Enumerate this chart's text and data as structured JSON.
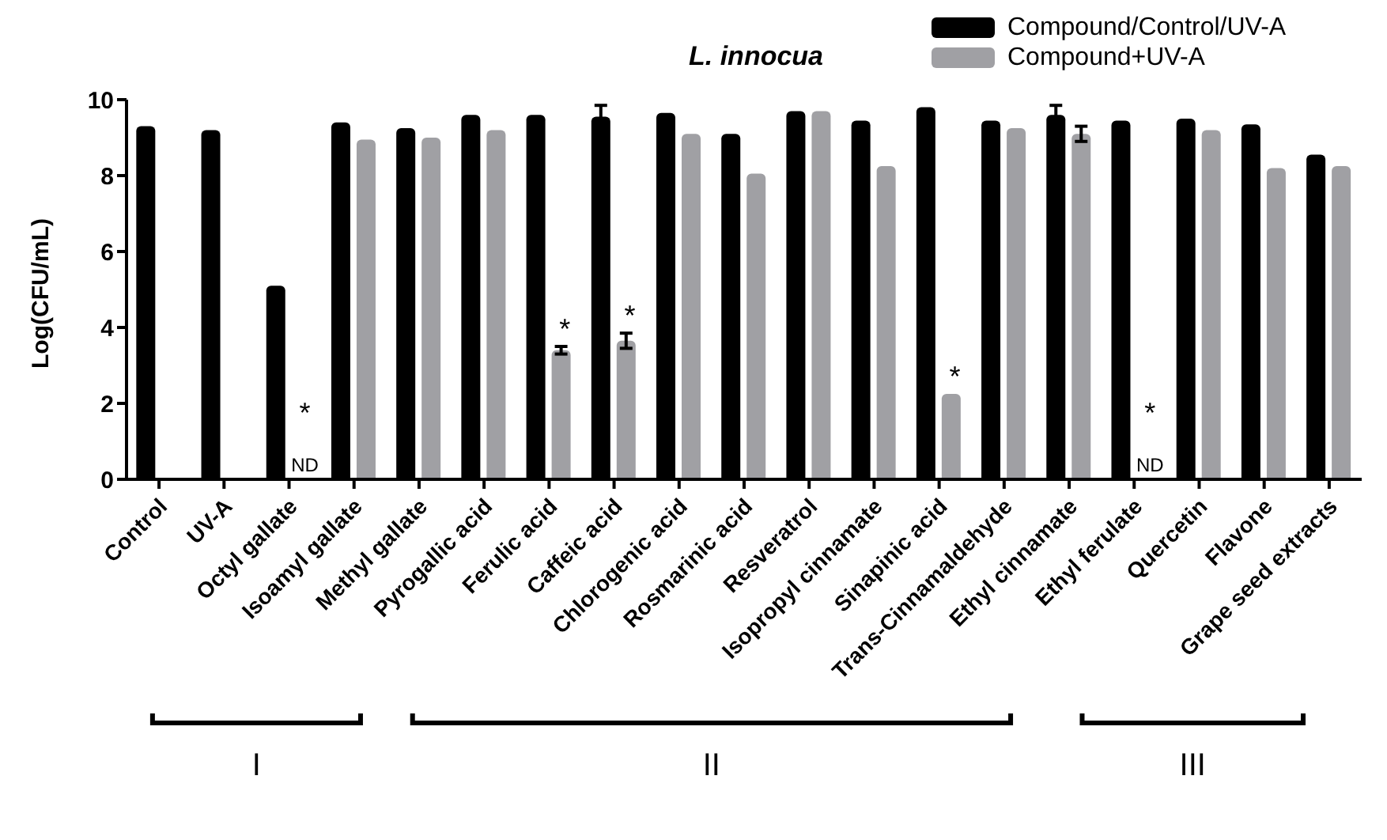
{
  "chart_data": {
    "type": "bar",
    "title": "L. innocua",
    "ylabel": "Log(CFU/mL)",
    "categories": [
      "Control",
      "UV-A",
      "Octyl gallate",
      "Isoamyl gallate",
      "Methyl gallate",
      "Pyrogallic acid",
      "Ferulic acid",
      "Caffeic acid",
      "Chlorogenic acid",
      "Rosmarinic acid",
      "Resveratrol",
      "Isopropyl cinnamate",
      "Sinapinic acid",
      "Trans-Cinnamaldehyde",
      "Ethyl cinnamate",
      "Ethyl ferulate",
      "Quercetin",
      "Flavone",
      "Grape seed extracts"
    ],
    "series": [
      {
        "name": "Compound/Control/UV-A",
        "color": "#000000",
        "values": [
          9.3,
          9.2,
          5.1,
          9.4,
          9.25,
          9.6,
          9.6,
          9.55,
          9.65,
          9.1,
          9.7,
          9.45,
          9.8,
          9.45,
          9.6,
          9.45,
          9.5,
          9.35,
          8.55
        ],
        "errors": [
          null,
          null,
          null,
          null,
          null,
          null,
          null,
          0.3,
          null,
          null,
          null,
          null,
          null,
          null,
          0.25,
          null,
          null,
          null,
          null
        ]
      },
      {
        "name": "Compound+UV-A",
        "color": "#a0a0a4",
        "values": [
          null,
          null,
          null,
          8.95,
          9.0,
          9.2,
          3.4,
          3.65,
          9.1,
          8.05,
          9.7,
          8.25,
          2.25,
          9.25,
          9.1,
          null,
          9.2,
          8.2,
          8.25
        ],
        "errors": [
          null,
          null,
          null,
          null,
          null,
          null,
          0.1,
          0.2,
          null,
          null,
          null,
          null,
          null,
          null,
          0.2,
          null,
          null,
          null,
          null
        ]
      }
    ],
    "ylim": [
      0,
      10
    ],
    "yticks": [
      0,
      2,
      4,
      6,
      8,
      10
    ],
    "legend": "top right",
    "annotations": [
      {
        "text": "ND",
        "x": "Octyl gallate",
        "y": 0
      },
      {
        "text": "*",
        "x": "Octyl gallate",
        "y": 1.3
      },
      {
        "text": "*",
        "x": "Ferulic acid",
        "y": 3.5
      },
      {
        "text": "*",
        "x": "Caffeic acid",
        "y": 3.85
      },
      {
        "text": "*",
        "x": "Sinapinic acid",
        "y": 2.25
      },
      {
        "text": "ND",
        "x": "Ethyl ferulate",
        "y": 0
      },
      {
        "text": "*",
        "x": "Ethyl ferulate",
        "y": 1.3
      },
      "I",
      "II",
      "III"
    ]
  }
}
